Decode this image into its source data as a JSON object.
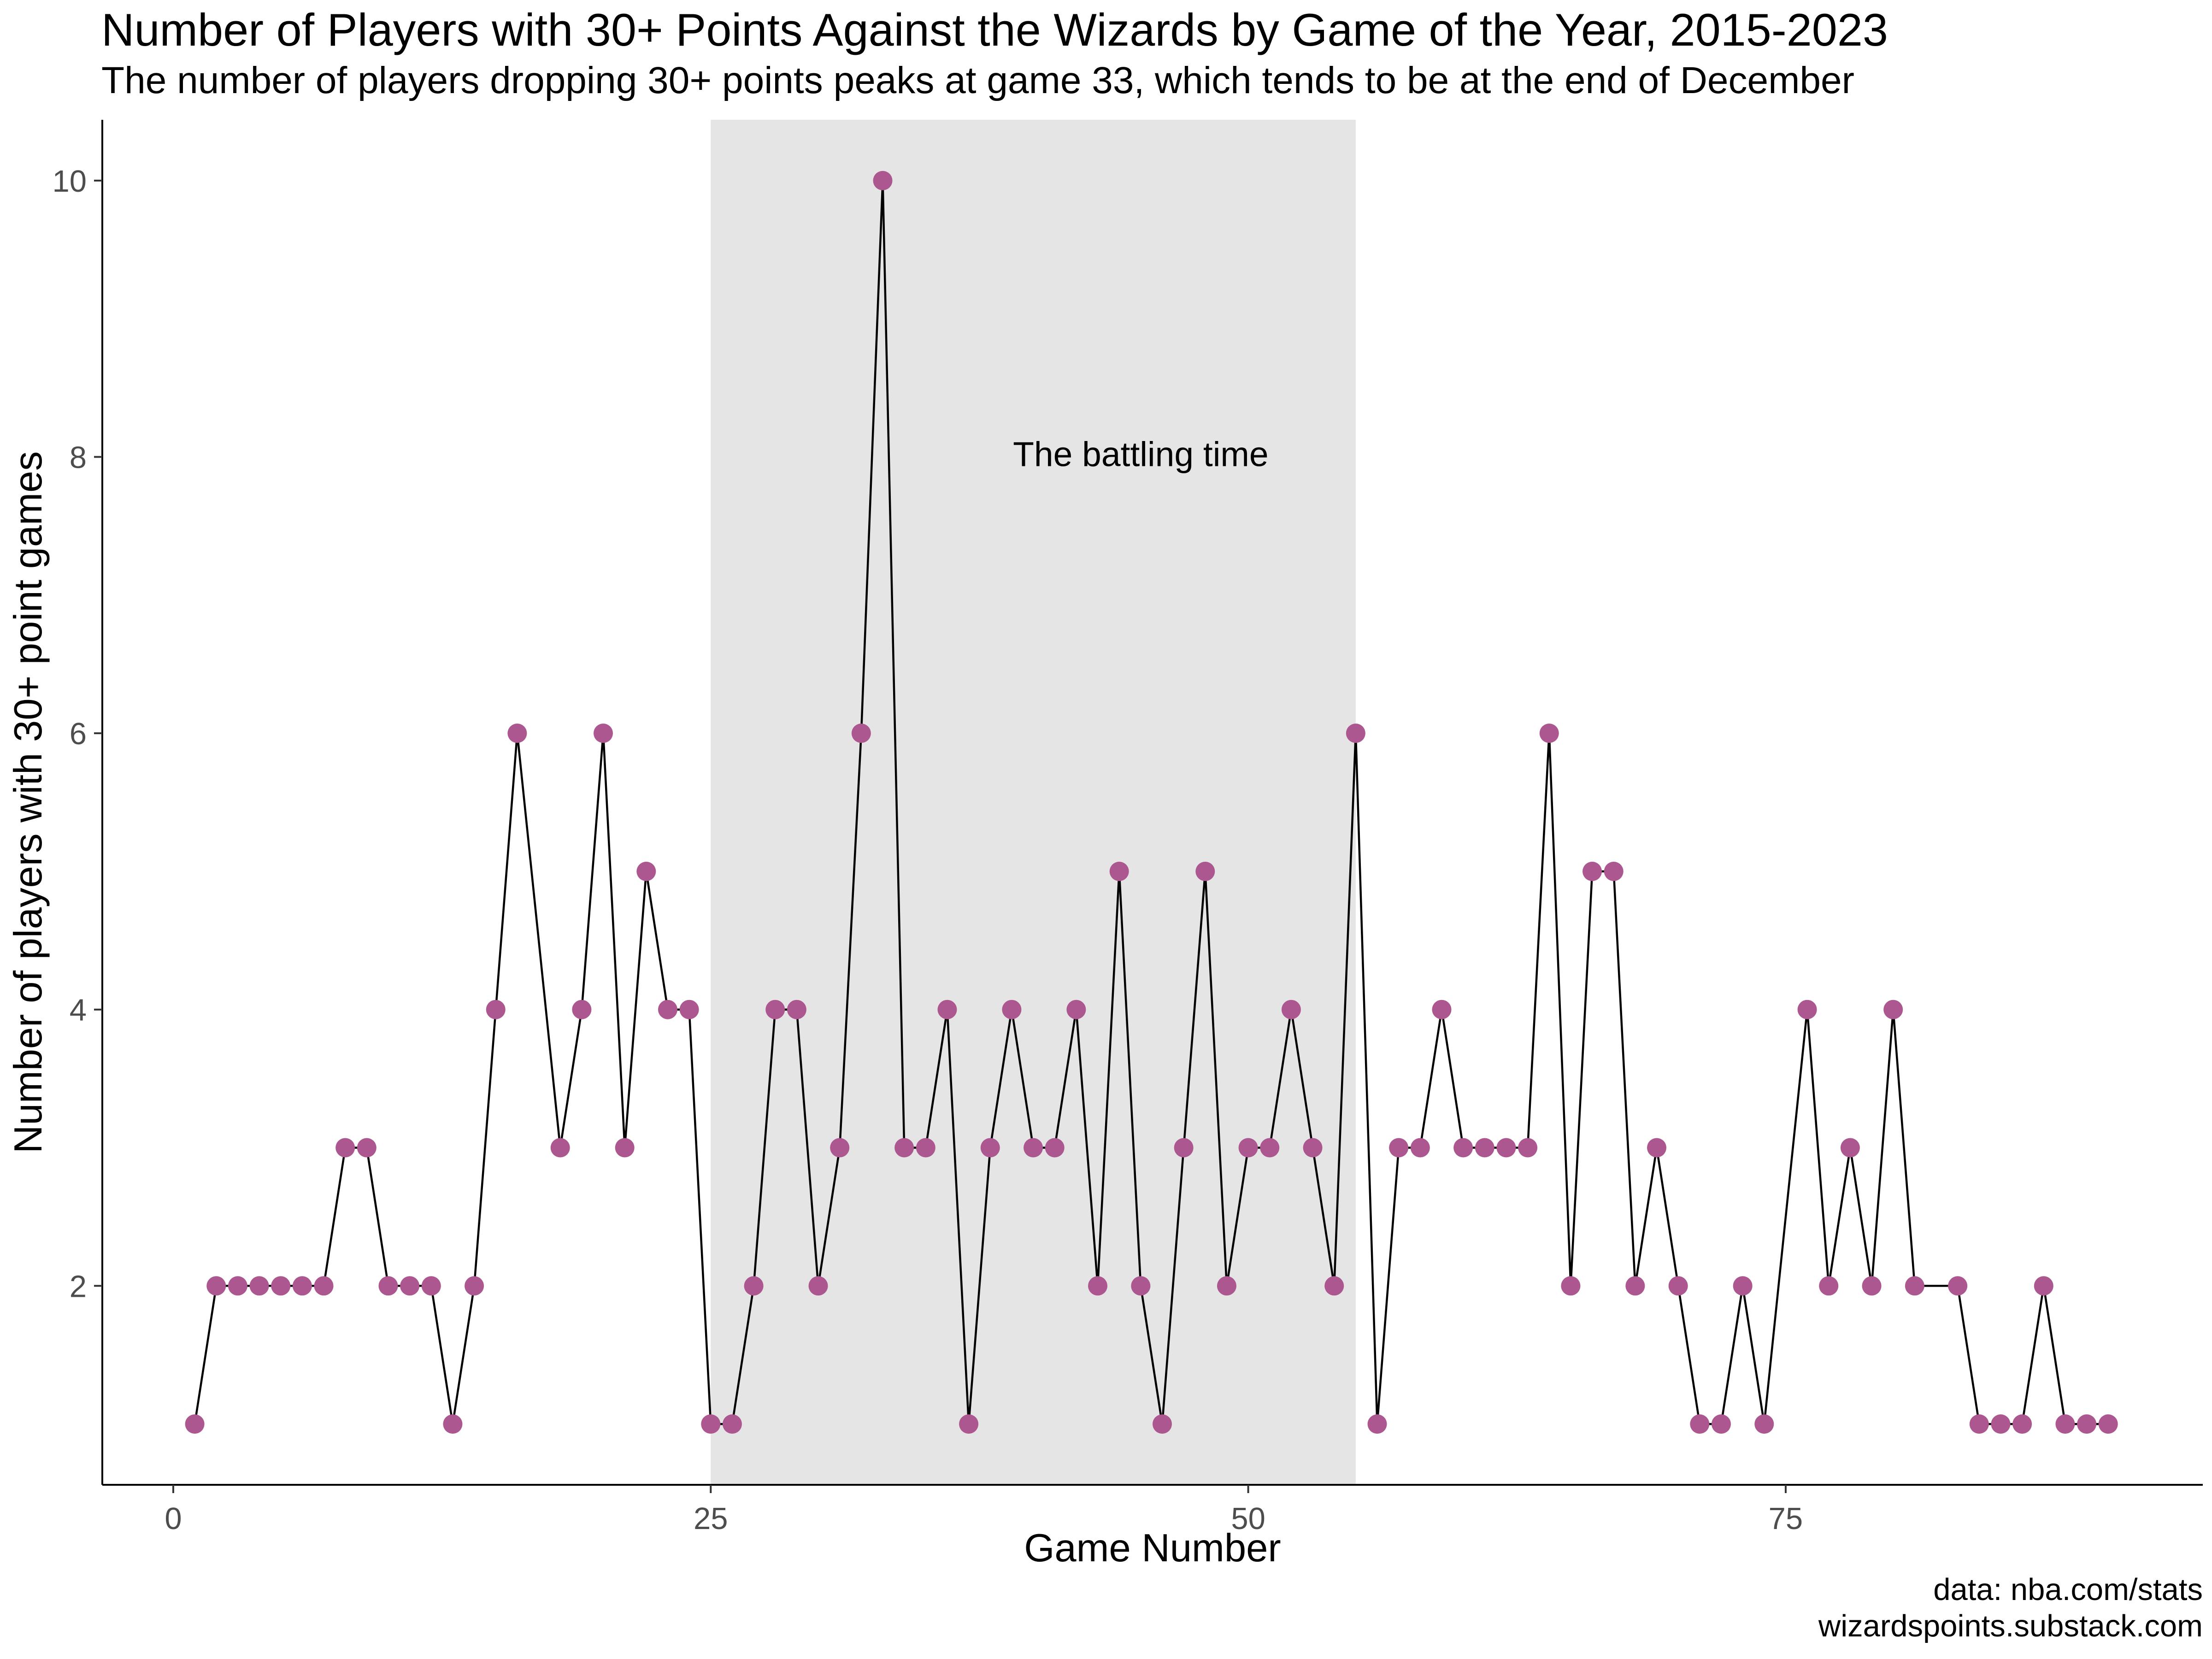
{
  "header": {
    "title": "Number of Players with 30+ Points Against the Wizards by Game of the Year, 2015-2023",
    "subtitle": "The number of players dropping 30+ points peaks at game 33, which tends to be at the end of December"
  },
  "caption": {
    "source": "data: nba.com/stats",
    "site": "wizardspoints.substack.com"
  },
  "chart_data": {
    "type": "line",
    "title": "Number of Players with 30+ Points Against the Wizards by Game of the Year, 2015-2023",
    "subtitle": "The number of players dropping 30+ points peaks at game 33, which tends to be at the end of December",
    "xlabel": "Game Number",
    "ylabel": "Number of players with 30+ point games",
    "xlim": [
      -3.3,
      94.4
    ],
    "ylim": [
      0.56,
      10.44
    ],
    "xticks": [
      0,
      25,
      50,
      75
    ],
    "yticks": [
      2,
      4,
      6,
      8,
      10
    ],
    "grid": false,
    "point_color": "#ac5790",
    "line_color": "#000000",
    "shaded_region": {
      "x": [
        25,
        55
      ],
      "color": "#e5e5e5",
      "label": "The battling time",
      "label_position": [
        45,
        8
      ]
    },
    "series": [
      {
        "x": [
          1,
          2,
          3,
          4,
          5,
          6,
          7,
          8,
          9,
          10,
          11,
          12,
          13,
          14,
          15,
          16,
          18,
          19,
          20,
          21,
          22,
          23,
          24,
          25,
          26,
          27,
          28,
          29,
          30,
          31,
          32,
          33,
          34,
          35,
          36,
          37,
          38,
          39,
          40,
          41,
          42,
          43,
          44,
          45,
          46,
          47,
          48,
          49,
          50,
          51,
          52,
          53,
          54,
          55,
          56,
          57,
          58,
          59,
          60,
          61,
          62,
          63,
          64,
          65,
          66,
          67,
          68,
          69,
          70,
          71,
          72,
          73,
          74,
          76,
          77,
          78,
          79,
          80,
          81,
          83,
          84,
          85,
          86,
          87,
          88,
          89,
          90
        ],
        "y": [
          1,
          2,
          2,
          2,
          2,
          2,
          2,
          3,
          3,
          2,
          2,
          2,
          1,
          2,
          4,
          6,
          3,
          4,
          6,
          3,
          5,
          4,
          4,
          1,
          1,
          2,
          4,
          4,
          2,
          3,
          6,
          10,
          3,
          3,
          4,
          1,
          3,
          4,
          3,
          3,
          4,
          2,
          5,
          2,
          1,
          3,
          5,
          2,
          3,
          3,
          4,
          3,
          2,
          6,
          1,
          3,
          3,
          4,
          3,
          3,
          3,
          3,
          6,
          2,
          5,
          5,
          2,
          3,
          2,
          1,
          1,
          2,
          1,
          4,
          2,
          3,
          2,
          4,
          2,
          2,
          1,
          1,
          1,
          2,
          1,
          1,
          1
        ]
      }
    ]
  }
}
